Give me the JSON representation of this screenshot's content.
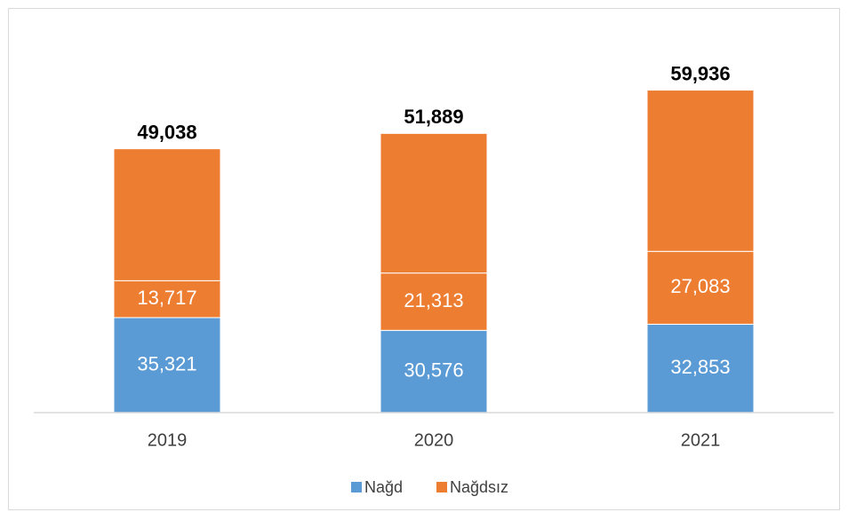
{
  "chart_data": {
    "type": "bar",
    "stacked": true,
    "categories": [
      "2019",
      "2020",
      "2021"
    ],
    "series": [
      {
        "name": "Nağd",
        "color": "#5b9bd5",
        "values": [
          35321,
          30576,
          32853
        ],
        "value_labels": [
          "35,321",
          "30,576",
          "32,853"
        ]
      },
      {
        "name": "Nağdsız",
        "color": "#ed7d31",
        "values": [
          13717,
          21313,
          27083
        ],
        "value_labels": [
          "13,717",
          "21,313",
          "27,083"
        ]
      }
    ],
    "totals": {
      "color": "#ed7d31",
      "values": [
        49038,
        51889,
        59936
      ],
      "value_labels": [
        "49,038",
        "51,889",
        "59,936"
      ]
    },
    "ylim": [
      0,
      125000
    ],
    "legend": "bottom"
  }
}
